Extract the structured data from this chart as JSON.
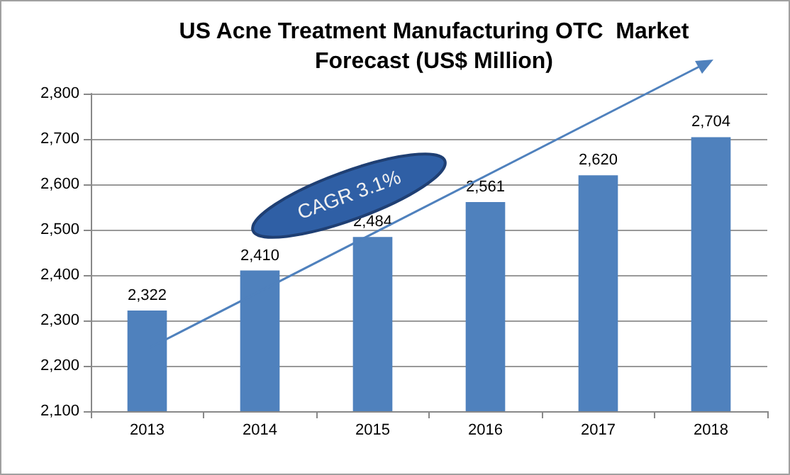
{
  "chart_data": {
    "type": "bar",
    "title": "US Acne Treatment Manufacturing OTC  Market\nForecast (US$ Million)",
    "categories": [
      "2013",
      "2014",
      "2015",
      "2016",
      "2017",
      "2018"
    ],
    "values": [
      2322,
      2410,
      2484,
      2561,
      2620,
      2704
    ],
    "value_labels": [
      "2,322",
      "2,410",
      "2,484",
      "2,561",
      "2,620",
      "2,704"
    ],
    "color": "#4f81bd",
    "ylim": [
      2100,
      2800
    ],
    "yticks": [
      {
        "value": 2100,
        "label": "2,100"
      },
      {
        "value": 2200,
        "label": "2,200"
      },
      {
        "value": 2300,
        "label": "2,300"
      },
      {
        "value": 2400,
        "label": "2,400"
      },
      {
        "value": 2500,
        "label": "2,500"
      },
      {
        "value": 2600,
        "label": "2,600"
      },
      {
        "value": 2700,
        "label": "2,700"
      },
      {
        "value": 2800,
        "label": "2,800"
      }
    ],
    "grid": "y",
    "annotations": [
      "CAGR 3.1%"
    ]
  }
}
